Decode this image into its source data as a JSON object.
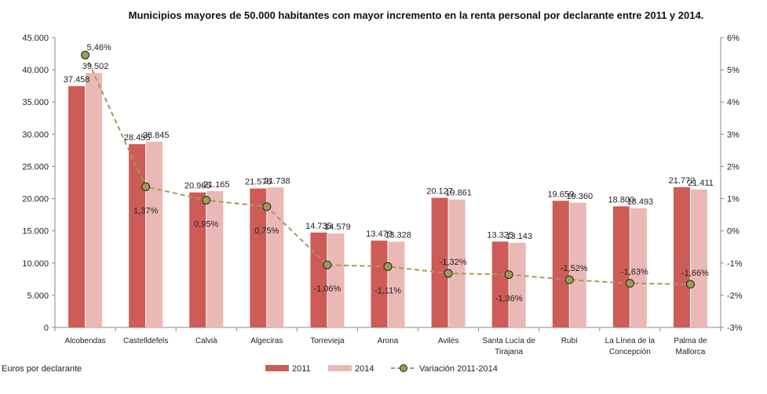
{
  "chart_data": {
    "type": "bar",
    "title": "Municipios mayores de 50.000 habitantes  con mayor incremento en la renta personal por declarante entre 2011 y 2014.",
    "ylabel_note": "Euros por declarante",
    "categories": [
      "Alcobendas",
      "Castelldefels",
      "Calvià",
      "Algeciras",
      "Torrevieja",
      "Arona",
      "Avilés",
      "Santa Lucía de Tirajana",
      "Rubí",
      "La Línea de la Concepción",
      "Palma de Mallorca"
    ],
    "category_lines": [
      [
        "Alcobendas"
      ],
      [
        "Castelldefels"
      ],
      [
        "Calvià"
      ],
      [
        "Algeciras"
      ],
      [
        "Torrevieja"
      ],
      [
        "Arona"
      ],
      [
        "Avilés"
      ],
      [
        "Santa Lucía de",
        "Tirajana"
      ],
      [
        "Rubí"
      ],
      [
        "La Línea de la",
        "Concepción"
      ],
      [
        "Palma de",
        "Mallorca"
      ]
    ],
    "series": [
      {
        "name": "2011",
        "axis": "left",
        "kind": "bar",
        "color": "#cd5c57",
        "values": [
          37458,
          28455,
          20965,
          21576,
          14735,
          13479,
          20127,
          13325,
          19659,
          18800,
          21772
        ],
        "labels": [
          "37.458",
          "28.455",
          "20.965",
          "21.576",
          "14.735",
          "13.479",
          "20.127",
          "13.325",
          "19.659",
          "18.800",
          "21.772"
        ]
      },
      {
        "name": "2014",
        "axis": "right-bar",
        "kind": "bar",
        "color": "#eab8b5",
        "values": [
          39502,
          28845,
          21165,
          21738,
          14579,
          13328,
          19861,
          13143,
          19360,
          18493,
          21411
        ],
        "labels": [
          "39.502",
          "28.845",
          "21.165",
          "21.738",
          "14.579",
          "13.328",
          "19.861",
          "13.143",
          "19.360",
          "18.493",
          "21.411"
        ]
      },
      {
        "name": "Variación 2011-2014",
        "axis": "right",
        "kind": "line",
        "color": "#a39a5e",
        "marker_fill": "#9d9c56",
        "values": [
          5.46,
          1.37,
          0.95,
          0.75,
          -1.06,
          -1.11,
          -1.32,
          -1.36,
          -1.52,
          -1.63,
          -1.66
        ],
        "labels": [
          "5,46%",
          "1,37%",
          "0,95%",
          "0,75%",
          "-1,06%",
          "-1,11%",
          "-1,32%",
          "-1,36%",
          "-1,52%",
          "-1,63%",
          "-1,66%"
        ]
      }
    ],
    "y_left": {
      "ylim": [
        0,
        45000
      ],
      "ticks": [
        0,
        5000,
        10000,
        15000,
        20000,
        25000,
        30000,
        35000,
        40000,
        45000
      ],
      "tick_labels": [
        "0",
        "5.000",
        "10.000",
        "15.000",
        "20.000",
        "25.000",
        "30.000",
        "35.000",
        "40.000",
        "45.000"
      ]
    },
    "y_right": {
      "ylim": [
        -3,
        6
      ],
      "ticks": [
        -3,
        -2,
        -1,
        0,
        1,
        2,
        3,
        4,
        5,
        6
      ],
      "tick_labels": [
        "-3%",
        "-2%",
        "-1%",
        "0%",
        "1%",
        "2%",
        "3%",
        "4%",
        "5%",
        "6%"
      ]
    },
    "grid": false,
    "legend_position": "bottom"
  }
}
